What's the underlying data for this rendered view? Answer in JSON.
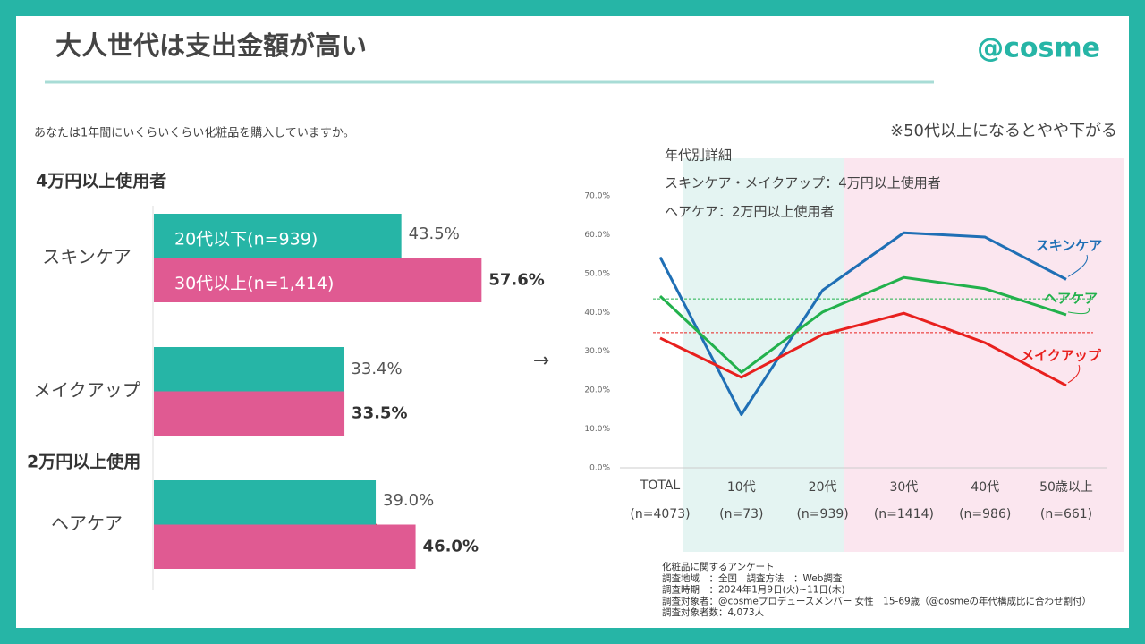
{
  "header": {
    "title": "大人世代は支出金額が高い",
    "logo": "@cosme"
  },
  "question": "あなたは1年間にいくらいくらい化粧品を購入していますか。",
  "chart_data": [
    {
      "type": "bar",
      "orientation": "horizontal",
      "section_labels": [
        "4万円以上使用者",
        "2万円以上使用"
      ],
      "categories": [
        "スキンケア",
        "メイクアップ",
        "ヘアケア"
      ],
      "series": [
        {
          "name": "20代以下(n=939)",
          "color": "#26b5a6",
          "values": [
            43.5,
            33.4,
            39.0
          ],
          "value_labels": [
            "43.5%",
            "33.4%",
            "39.0%"
          ]
        },
        {
          "name": "30代以上(n=1,414)",
          "color": "#e05a92",
          "values": [
            57.6,
            33.5,
            46.0
          ],
          "value_labels": [
            "57.6%",
            "33.5%",
            "46.0%"
          ]
        }
      ]
    },
    {
      "type": "line",
      "annotation": "※50代以上になるとやや下がる",
      "notes": [
        "年代別詳細",
        "スキンケア・メイクアップ：4万円以上使用者",
        "ヘアケア：2万円以上使用者"
      ],
      "categories": [
        "TOTAL",
        "10代",
        "20代",
        "30代",
        "40代",
        "50歳以上"
      ],
      "category_sublabels": [
        "(n=4073)",
        "(n=73)",
        "(n=939)",
        "(n=1414)",
        "(n=986)",
        "(n=661)"
      ],
      "series": [
        {
          "name": "スキンケア",
          "color": "#1f6fb5",
          "values": [
            54.2,
            13.7,
            45.7,
            60.5,
            59.4,
            48.5
          ]
        },
        {
          "name": "ヘアケア",
          "color": "#22b14c",
          "values": [
            44.2,
            24.6,
            40.1,
            49.0,
            46.1,
            39.4
          ]
        },
        {
          "name": "メイクアップ",
          "color": "#e8201e",
          "values": [
            33.4,
            23.3,
            34.3,
            39.8,
            32.2,
            21.2
          ]
        }
      ],
      "reference_lines": [
        {
          "value": 54.0,
          "color": "#1f6fb5"
        },
        {
          "value": 43.5,
          "color": "#22b14c"
        },
        {
          "value": 34.8,
          "color": "#e8201e"
        }
      ],
      "ylim": [
        0,
        70
      ],
      "yticks": [
        {
          "value": 0,
          "label": "0.0%"
        },
        {
          "value": 10,
          "label": "10.0%"
        },
        {
          "value": 20,
          "label": "20.0%"
        },
        {
          "value": 30,
          "label": "30.0%"
        },
        {
          "value": 40,
          "label": "40.0%"
        },
        {
          "value": 50,
          "label": "50.0%"
        },
        {
          "value": 60,
          "label": "60.0%"
        },
        {
          "value": 70,
          "label": "70.0%"
        }
      ]
    }
  ],
  "footnotes": [
    "化粧品に関するアンケート",
    "調査地域　：全国　調査方法　：Web調査",
    "調査時期　：2024年1月9日(火)~11日(木)",
    "調査対象者：@cosmeプロデュースメンバー 女性　15-69歳（@cosmeの年代構成比に合わせ割付）",
    "調査対象者数：4,073人"
  ]
}
